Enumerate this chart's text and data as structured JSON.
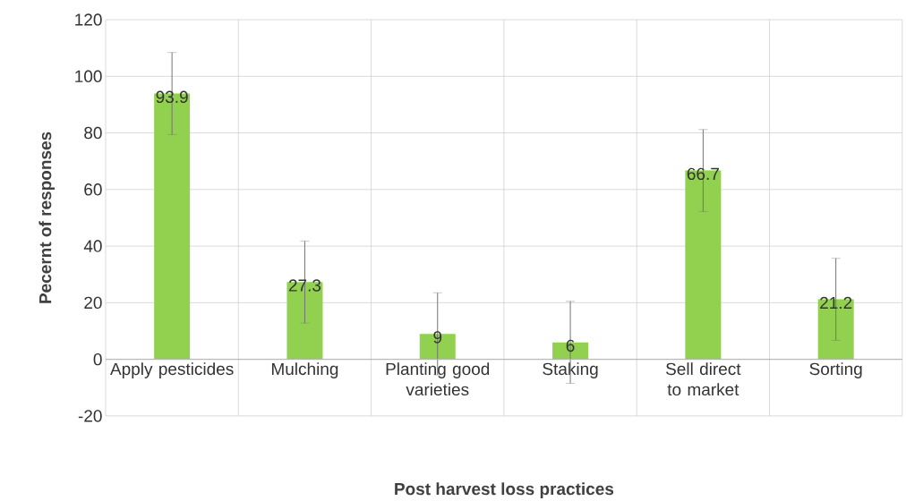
{
  "chart_data": {
    "type": "bar",
    "xlabel": "Post harvest loss practices",
    "ylabel": "Pecernt of responses",
    "categories": [
      "Apply pesticides",
      "Mulching",
      "Planting good varieties",
      "Staking",
      "Sell direct to market",
      "Sorting"
    ],
    "values": [
      93.9,
      27.3,
      9,
      6,
      66.7,
      21.2
    ],
    "value_labels": [
      "93.9",
      "27.3",
      "9",
      "6",
      "66.7",
      "21.2"
    ],
    "errors": [
      14.5,
      14.5,
      14.5,
      14.5,
      14.5,
      14.5
    ],
    "color": "#92d050",
    "ylim": [
      -20,
      120
    ],
    "yticks": [
      -20,
      0,
      20,
      40,
      60,
      80,
      100,
      120
    ],
    "grid": true
  }
}
